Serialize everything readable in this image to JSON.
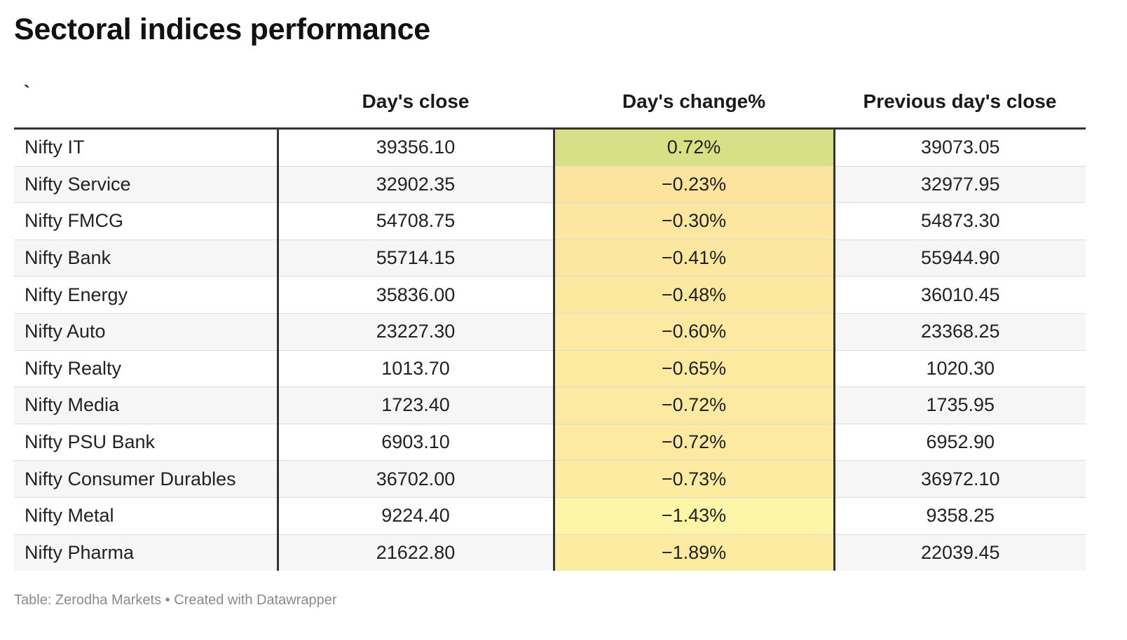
{
  "title": "Sectoral indices performance",
  "footer": "Table: Zerodha Markets • Created with Datawrapper",
  "colors": {
    "positive_high": "#d9df84",
    "negative_scale": [
      "#fde49e",
      "#fde69f",
      "#fde7a0",
      "#fde8a0",
      "#fde9a1",
      "#fdeaa1",
      "#fdeaa2",
      "#fdeaa2",
      "#fdeba2",
      "#fdf5a7",
      "#fdeba2"
    ]
  },
  "chart_data": {
    "type": "table",
    "columns": [
      "`",
      "Day's close",
      "Day's change%",
      "Previous day's close"
    ],
    "rows": [
      {
        "name": "Nifty IT",
        "close": "39356.10",
        "change": "0.72%",
        "prev": "39073.05"
      },
      {
        "name": "Nifty Service",
        "close": "32902.35",
        "change": "−0.23%",
        "prev": "32977.95"
      },
      {
        "name": "Nifty FMCG",
        "close": "54708.75",
        "change": "−0.30%",
        "prev": "54873.30"
      },
      {
        "name": "Nifty Bank",
        "close": "55714.15",
        "change": "−0.41%",
        "prev": "55944.90"
      },
      {
        "name": "Nifty Energy",
        "close": "35836.00",
        "change": "−0.48%",
        "prev": "36010.45"
      },
      {
        "name": "Nifty Auto",
        "close": "23227.30",
        "change": "−0.60%",
        "prev": "23368.25"
      },
      {
        "name": "Nifty Realty",
        "close": "1013.70",
        "change": "−0.65%",
        "prev": "1020.30"
      },
      {
        "name": "Nifty Media",
        "close": "1723.40",
        "change": "−0.72%",
        "prev": "1735.95"
      },
      {
        "name": "Nifty PSU Bank",
        "close": "6903.10",
        "change": "−0.72%",
        "prev": "6952.90"
      },
      {
        "name": "Nifty Consumer Durables",
        "close": "36702.00",
        "change": "−0.73%",
        "prev": "36972.10"
      },
      {
        "name": "Nifty Metal",
        "close": "9224.40",
        "change": "−1.43%",
        "prev": "9358.25"
      },
      {
        "name": "Nifty Pharma",
        "close": "21622.80",
        "change": "−1.89%",
        "prev": "22039.45"
      }
    ],
    "change_colors": [
      "#d9df84",
      "#fde49e",
      "#fde69f",
      "#fde7a0",
      "#fde8a0",
      "#fde9a1",
      "#fdeaa1",
      "#fdeaa2",
      "#fdeaa2",
      "#fdeba2",
      "#fdf5a7",
      "#fdeba2"
    ]
  }
}
